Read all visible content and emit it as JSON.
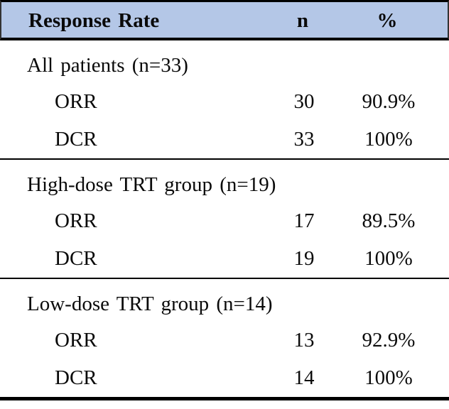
{
  "table": {
    "header": {
      "col1": "Response Rate",
      "col2": "n",
      "col3": "%"
    },
    "sections": [
      {
        "group": "All patients (n=33)",
        "rows": [
          {
            "label": "ORR",
            "n": "30",
            "pct": "90.9%"
          },
          {
            "label": "DCR",
            "n": "33",
            "pct": "100%"
          }
        ]
      },
      {
        "group": "High-dose TRT group (n=19)",
        "rows": [
          {
            "label": "ORR",
            "n": "17",
            "pct": "89.5%"
          },
          {
            "label": "DCR",
            "n": "19",
            "pct": "100%"
          }
        ]
      },
      {
        "group": "Low-dose TRT group (n=14)",
        "rows": [
          {
            "label": "ORR",
            "n": "13",
            "pct": "92.9%"
          },
          {
            "label": "DCR",
            "n": "14",
            "pct": "100%"
          }
        ]
      }
    ]
  },
  "colors": {
    "header_bg": "#b4c7e7",
    "rule": "#000000",
    "text": "#0a0a0a"
  }
}
